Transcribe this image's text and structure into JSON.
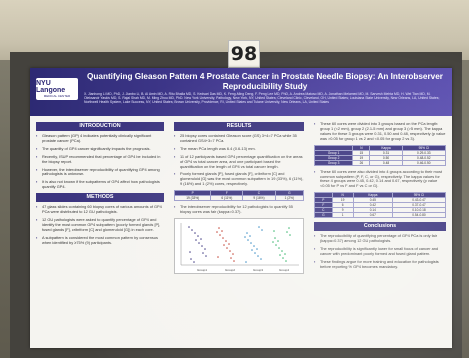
{
  "board": {
    "number": "98"
  },
  "poster": {
    "logo": {
      "line1": "NYU Langone",
      "line2": "MEDICAL CENTER"
    },
    "title": "Quantifying Gleason Pattern 4 Prostate Cancer in Prostate Needle Biopsy: An Interobserver Reproducibility Study",
    "authors": "X. Jianhong Li MD, PhD, J. Jianbo Li, B. Al Amin MD, A. Ritu Bhalla MD, S. Kedsari Das MD, K. Feng-Ming Deng, F. Peng Lee MD, PhD, A. Andrea Matoso MD, A. Jonathan Melamed MD, M. Sarvesh Mehta MD, H. Wei Tian MD, M. Oleksandr Yaskiv MD, S. Rajal Shah MD, M. Ming Zhou MD, PhD. New York University, Pathology, New York, NY, United States; Cleveland Clinic, Cleveland, OH, United States; Louisiana State University, New Orleans, LA, United States; Northwell Health System, Lake Success, NY, United States; Brown University, Providence, RI, United States and Tulane University, New Orleans, LA, United States",
    "introduction": {
      "heading": "INTRODUCTION",
      "bullets": [
        "Gleason pattern (GP) 4 indicates potentially clinically significant prostate cancer (PCa).",
        "The quantity of GP4 cancer significantly impacts the prognosis.",
        "Recently, ISUP recommended that percentage of GP4 be included in the biopsy report.",
        "However, the interobserver reproducibility of quantifying GP4 among pathologists is unknown.",
        "It is also not known if the subpatterns of GP4 affect how pathologists quantify GP4."
      ]
    },
    "methods": {
      "heading": "METHODS",
      "bullets": [
        "47 glass slides containing 60 biopsy cores of various amounts of GP4 PCa were distributed to 12 GU pathologists.",
        "12 GU pathologists were asked to quantify percentage of GP4 and identify the most common GP4 subpattern (poorly formed glands [P], fused glands [F], cribriform [C] and glomeruloid [G]) in each core.",
        "A subpattern is considered the most common pattern by consensus when identified by ≥75% (9) participants."
      ]
    },
    "results": {
      "heading": "RESULTS",
      "bullets": [
        "25 biopsy cores contained Gleason score (GS) 3+4=7 PCa while 35 contained GS4+3=7 PCa.",
        "The mean PCa length was 6.4 (0.6-13) mm.",
        "11 of 12 participants based GP4 percentage quantification on the areas of GP4 vs total cancer area, and one participant based the quantification on the length of GP4 vs total cancer length.",
        "Poorly formed glands [P], fused glands [F], cribriform [C] and glomeruloid [G] was the most common subpattern in 19 (33%), 6 (11%), 9 (16%) and 1 (2%) cores, respectively.",
        "The interobserver reproducibility for 12 pathologists to quantify 55 biopsy cores was fair (kappa=0.37)."
      ],
      "table": {
        "headers": [
          "P",
          "F",
          "C",
          "G"
        ],
        "row": [
          "19 (33%)",
          "6 (11%)",
          "9 (16%)",
          "1 (2%)"
        ]
      },
      "chart_labels": [
        "Group1",
        "Group2",
        "Group3",
        "Group4"
      ]
    },
    "right": {
      "bullets_top": [
        "These 60 cores were divided into 3 groups based on the PCa length: group 1 (<2 mm), group 2 (2.1-5 mm) and group 3 (>5 mm). The kappa values for these 3 groups were 0.31, 0.50 and 0.48, respectively (p value was >0.05 for group 1 vs 2 and <0.05 for group 2 vs 3).",
        "These 60 cores were also divided into 4 groups according to their most common subpattern (P, F, C, or G), respectively. The kappa values for these 4 groups were 0.45, 0.42, 0.14 and 0.67, respectively (p value <0.05 for P vs F and F vs C or G)."
      ],
      "table1": {
        "headers": [
          "",
          "N",
          "Kappa",
          "95% CI"
        ],
        "rows": [
          [
            "Group 1",
            "15",
            "0.31",
            "0.29-0.33"
          ],
          [
            "Group 2",
            "19",
            "0.50",
            "0.48-0.52"
          ],
          [
            "Group 3",
            "26",
            "0.48",
            "0.46-0.50"
          ]
        ]
      },
      "table2": {
        "headers": [
          "",
          "N",
          "Kappa",
          "95% CI"
        ],
        "rows": [
          [
            "P",
            "19",
            "0.45",
            "0.43-0.47"
          ],
          [
            "F",
            "6",
            "0.42",
            "0.37-0.47"
          ],
          [
            "C",
            "9",
            "0.14",
            "0.10-0.18"
          ],
          [
            "G",
            "1",
            "0.67",
            "0.54-0.80"
          ]
        ]
      },
      "conclusions": {
        "heading": "Conclusions",
        "bullets": [
          "The reproducibility of quantifying percentage of GP4 PCa is only fair (kappa=0.37) among 12 GU pathologists.",
          "The reproducibility is significantly lower for small focus of cancer and cancer with predominant poorly formed and fused gland pattern.",
          "These findings argue for more training and education for pathologists before reporting % GP4 becomes mandatory."
        ]
      }
    }
  }
}
